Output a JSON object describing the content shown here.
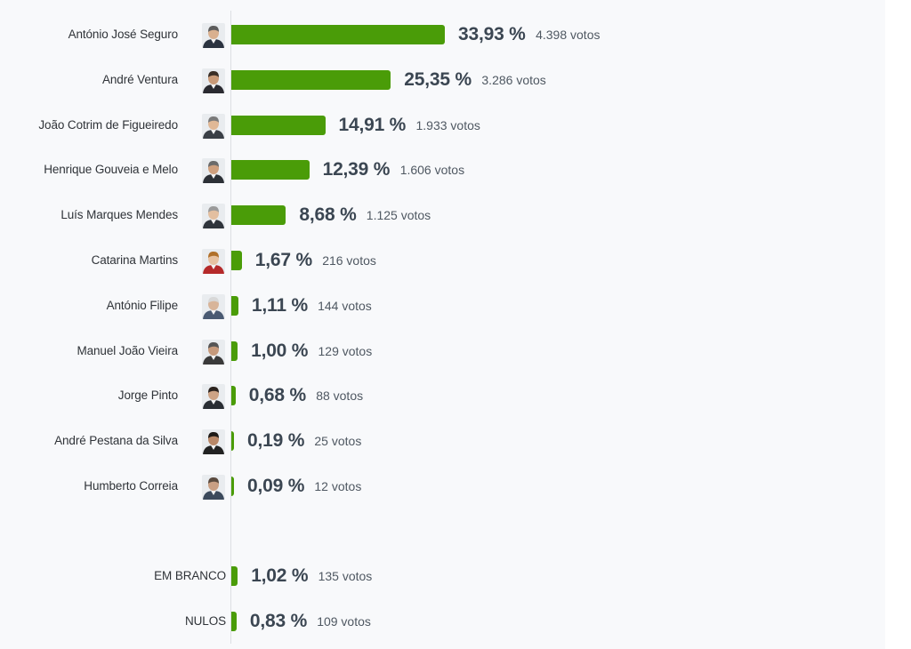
{
  "chart_data": {
    "type": "bar",
    "orientation": "horizontal",
    "value_suffix": " %",
    "votes_suffix": " votos",
    "max_value": 33.93,
    "colors": {
      "bar": "#4a9c08",
      "axis": "#dcdfe3",
      "background": "#f8f9fb"
    },
    "candidates": [
      {
        "name": "António José Seguro",
        "value": 33.93,
        "pct_label": "33,93 %",
        "votes_label": "4.398 votos",
        "avatar": "portrait-icon"
      },
      {
        "name": "André Ventura",
        "value": 25.35,
        "pct_label": "25,35 %",
        "votes_label": "3.286 votos",
        "avatar": "portrait-icon"
      },
      {
        "name": "João Cotrim de Figueiredo",
        "value": 14.91,
        "pct_label": "14,91 %",
        "votes_label": "1.933 votos",
        "avatar": "portrait-icon"
      },
      {
        "name": "Henrique Gouveia e Melo",
        "value": 12.39,
        "pct_label": "12,39 %",
        "votes_label": "1.606 votos",
        "avatar": "portrait-icon"
      },
      {
        "name": "Luís Marques Mendes",
        "value": 8.68,
        "pct_label": "8,68 %",
        "votes_label": "1.125 votos",
        "avatar": "portrait-icon"
      },
      {
        "name": "Catarina Martins",
        "value": 1.67,
        "pct_label": "1,67 %",
        "votes_label": "216 votos",
        "avatar": "portrait-icon"
      },
      {
        "name": "António Filipe",
        "value": 1.11,
        "pct_label": "1,11 %",
        "votes_label": "144 votos",
        "avatar": "portrait-icon"
      },
      {
        "name": "Manuel João Vieira",
        "value": 1.0,
        "pct_label": "1,00 %",
        "votes_label": "129 votos",
        "avatar": "portrait-icon"
      },
      {
        "name": "Jorge Pinto",
        "value": 0.68,
        "pct_label": "0,68 %",
        "votes_label": "88 votos",
        "avatar": "portrait-icon"
      },
      {
        "name": "André Pestana da Silva",
        "value": 0.19,
        "pct_label": "0,19 %",
        "votes_label": "25 votos",
        "avatar": "portrait-icon"
      },
      {
        "name": "Humberto Correia",
        "value": 0.09,
        "pct_label": "0,09 %",
        "votes_label": "12 votos",
        "avatar": "portrait-icon"
      }
    ],
    "other": [
      {
        "name": "EM BRANCO",
        "value": 1.02,
        "pct_label": "1,02 %",
        "votes_label": "135 votos"
      },
      {
        "name": "NULOS",
        "value": 0.83,
        "pct_label": "0,83 %",
        "votes_label": "109 votos"
      }
    ]
  }
}
